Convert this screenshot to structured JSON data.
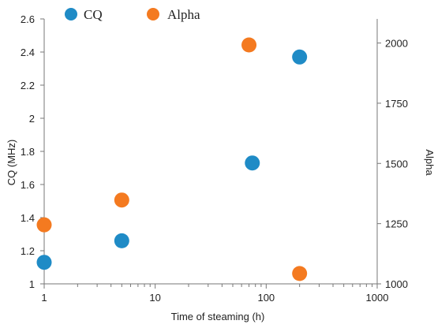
{
  "chart_data": {
    "type": "scatter",
    "xlabel": "Time of steaming (h)",
    "x_scale": "log",
    "xlim": [
      1,
      1000
    ],
    "x_ticks": [
      "1",
      "10",
      "100",
      "1000"
    ],
    "y_left": {
      "label": "CQ (MHz)",
      "lim": [
        1,
        2.6
      ],
      "ticks": [
        "1",
        "1.2",
        "1.4",
        "1.6",
        "1.8",
        "2",
        "2.2",
        "2.4",
        "2.6"
      ]
    },
    "y_right": {
      "label": "Alpha",
      "lim": [
        1000,
        2100
      ],
      "ticks": [
        "1000",
        "1250",
        "1500",
        "1750",
        "2000"
      ]
    },
    "legend_position": "top-left",
    "series": [
      {
        "name": "CQ",
        "color": "#1f8bc6",
        "axis": "left",
        "points": [
          {
            "x": 1,
            "y": 1.13
          },
          {
            "x": 5,
            "y": 1.26
          },
          {
            "x": 75,
            "y": 1.73
          },
          {
            "x": 200,
            "y": 2.37
          }
        ]
      },
      {
        "name": "Alpha",
        "color": "#f47a20",
        "axis": "right",
        "points": [
          {
            "x": 1,
            "y": 1245
          },
          {
            "x": 5,
            "y": 1348
          },
          {
            "x": 70,
            "y": 1992
          },
          {
            "x": 200,
            "y": 1043
          }
        ]
      }
    ]
  }
}
